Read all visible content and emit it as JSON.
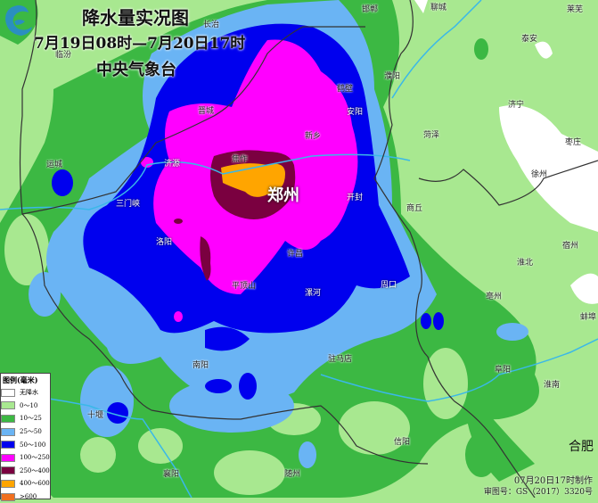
{
  "title": "降水量实况图",
  "period": "7月19日08时—7月20日17时",
  "agency": "中央气象台",
  "made_at": "07月20日17时制作",
  "map_approval": "审图号：GS（2017）3320号",
  "logo": "中央气象台 logo",
  "colors": {
    "none": "#ffffff",
    "c0_10": "#a8e890",
    "c10_25": "#3cb843",
    "c25_50": "#6ab4f4",
    "c50_100": "#0000ee",
    "c100_250": "#ff00ff",
    "c250_400": "#7a0040",
    "c400_600": "#ffa500",
    "c600": "#f07020"
  },
  "legend": {
    "title": "图例(毫米)",
    "items": [
      {
        "label": "无降水",
        "color": "#ffffff"
      },
      {
        "label": "0～10",
        "color": "#a8e890"
      },
      {
        "label": "10～25",
        "color": "#3cb843"
      },
      {
        "label": "25～50",
        "color": "#6ab4f4"
      },
      {
        "label": "50～100",
        "color": "#0000ee"
      },
      {
        "label": "100～250",
        "color": "#ff00ff"
      },
      {
        "label": "250～400",
        "color": "#7a0040"
      },
      {
        "label": "400～600",
        "color": "#ffa500"
      },
      {
        "label": ">600",
        "color": "#f07020"
      }
    ]
  },
  "cities": {
    "zhengzhou": "郑州",
    "changzhi": "长治",
    "linfen": "临汾",
    "yuncheng": "运城",
    "sanmenxia": "三门峡",
    "jiyuan": "济源",
    "jincheng": "晋城",
    "jiaozuo": "焦作",
    "xinxiang": "新乡",
    "hebi": "鹤壁",
    "anyang": "安阳",
    "puyang": "濮阳",
    "heze": "菏泽",
    "kaifeng": "开封",
    "shangqiu": "商丘",
    "xuchang": "许昌",
    "zhoukou": "周口",
    "luohe": "漯河",
    "pingdingshan": "平顶山",
    "luoyang": "洛阳",
    "nanyang": "南阳",
    "zhumadian": "驻马店",
    "xinyang": "信阳",
    "shiyan": "十堰",
    "xiangyang": "襄阳",
    "suizhou": "随州",
    "fuyang": "阜阳",
    "bozhou": "亳州",
    "huaibei": "淮北",
    "suzhou": "宿州",
    "bengbu": "蚌埠",
    "huainan": "淮南",
    "xuzhou": "徐州",
    "zaozhuang": "枣庄",
    "jining": "济宁",
    "taian": "泰安",
    "laiwu": "莱芜",
    "liaocheng": "聊城",
    "handan": "邯郸",
    "hefei": "合肥"
  }
}
